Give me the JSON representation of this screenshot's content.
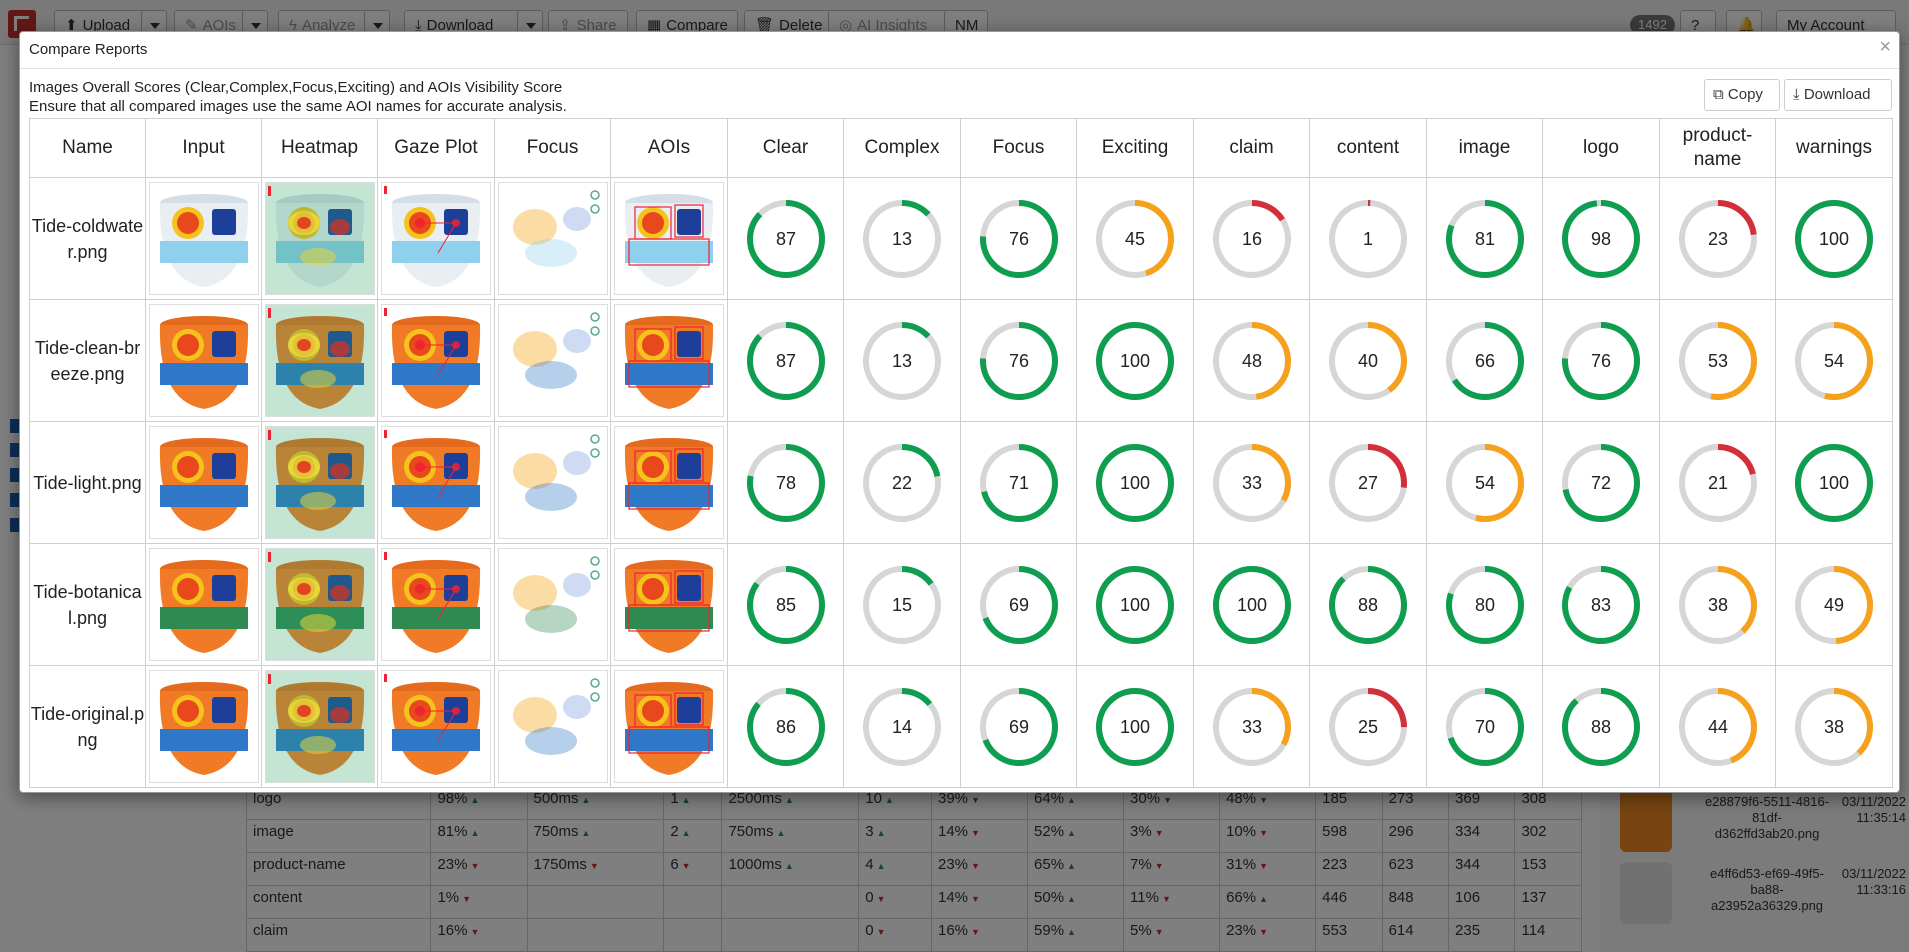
{
  "toolbar": {
    "upload": "Upload",
    "aois": "AOIs",
    "analyze": "Analyze",
    "download": "Download",
    "share": "Share",
    "compare": "Compare",
    "delete": "Delete",
    "ai_insights": "AI Insights",
    "nm": "NM",
    "count": "1492",
    "help": "?",
    "account": "My Account"
  },
  "modal": {
    "title": "Compare Reports",
    "close": "×",
    "description_line1": "Images Overall Scores (Clear,Complex,Focus,Exciting) and AOIs Visibility Score",
    "description_line2": "Ensure that all compared images use the same AOI names for accurate analysis.",
    "copy_label": "Copy",
    "download_label": "Download"
  },
  "colors": {
    "green": "#0f9d4f",
    "orange": "#f5a11c",
    "red": "#d32f3a",
    "track": "#d6d6d6"
  },
  "table": {
    "headers": [
      "Name",
      "Input",
      "Heatmap",
      "Gaze Plot",
      "Focus",
      "AOIs",
      "Clear",
      "Complex",
      "Focus",
      "Exciting",
      "claim",
      "content",
      "image",
      "logo",
      "product-name",
      "warnings"
    ],
    "rows": [
      {
        "name": "Tide-coldwater.png",
        "variant": "coldwater",
        "scores": [
          87,
          13,
          76,
          45,
          16,
          1,
          81,
          98,
          23,
          100
        ],
        "colors": [
          "green",
          "green",
          "green",
          "orange",
          "red",
          "red",
          "green",
          "green",
          "red",
          "green"
        ]
      },
      {
        "name": "Tide-clean-breeze.png",
        "variant": "orange",
        "scores": [
          87,
          13,
          76,
          100,
          48,
          40,
          66,
          76,
          53,
          54
        ],
        "colors": [
          "green",
          "green",
          "green",
          "green",
          "orange",
          "orange",
          "green",
          "green",
          "orange",
          "orange"
        ]
      },
      {
        "name": "Tide-light.png",
        "variant": "orange",
        "scores": [
          78,
          22,
          71,
          100,
          33,
          27,
          54,
          72,
          21,
          100
        ],
        "colors": [
          "green",
          "green",
          "green",
          "green",
          "orange",
          "red",
          "orange",
          "green",
          "red",
          "green"
        ]
      },
      {
        "name": "Tide-botanical.png",
        "variant": "botanical",
        "scores": [
          85,
          15,
          69,
          100,
          100,
          88,
          80,
          83,
          38,
          49
        ],
        "colors": [
          "green",
          "green",
          "green",
          "green",
          "green",
          "green",
          "green",
          "green",
          "orange",
          "orange"
        ]
      },
      {
        "name": "Tide-original.png",
        "variant": "orange",
        "scores": [
          86,
          14,
          69,
          100,
          33,
          25,
          70,
          88,
          44,
          38
        ],
        "colors": [
          "green",
          "green",
          "green",
          "green",
          "orange",
          "red",
          "green",
          "green",
          "orange",
          "orange"
        ]
      }
    ]
  },
  "background_table": {
    "rows": [
      [
        "logo",
        "98%",
        "up",
        "500ms",
        "up",
        "1",
        "up",
        "2500ms",
        "up",
        "10",
        "up",
        "39%",
        "down",
        "64%",
        "up",
        "30%",
        "down",
        "48%",
        "down",
        "185",
        "273",
        "369",
        "308"
      ],
      [
        "image",
        "81%",
        "up",
        "750ms",
        "up",
        "2",
        "up",
        "750ms",
        "up",
        "3",
        "up",
        "14%",
        "down",
        "52%",
        "up",
        "3%",
        "down",
        "10%",
        "down",
        "598",
        "296",
        "334",
        "302"
      ],
      [
        "product-name",
        "23%",
        "down",
        "1750ms",
        "down",
        "6",
        "down",
        "1000ms",
        "up",
        "4",
        "up",
        "23%",
        "down",
        "65%",
        "up",
        "7%",
        "down",
        "31%",
        "down",
        "223",
        "623",
        "344",
        "153"
      ],
      [
        "content",
        "1%",
        "down",
        "",
        "",
        "",
        "",
        "",
        "",
        "0",
        "down",
        "14%",
        "down",
        "50%",
        "up",
        "11%",
        "down",
        "66%",
        "up",
        "446",
        "848",
        "106",
        "137"
      ],
      [
        "claim",
        "16%",
        "down",
        "",
        "",
        "",
        "",
        "",
        "",
        "0",
        "down",
        "16%",
        "down",
        "59%",
        "up",
        "5%",
        "down",
        "23%",
        "down",
        "553",
        "614",
        "235",
        "114"
      ]
    ]
  },
  "right_panel": {
    "items": [
      {
        "name": "e28879f6-5511-4816-81df-d362ffd3ab20.png",
        "date": "03/11/2022 11:35:14"
      },
      {
        "name": "e4ff6d53-ef69-49f5-ba88-a23952a36329.png",
        "date": "03/11/2022 11:33:16"
      }
    ]
  }
}
